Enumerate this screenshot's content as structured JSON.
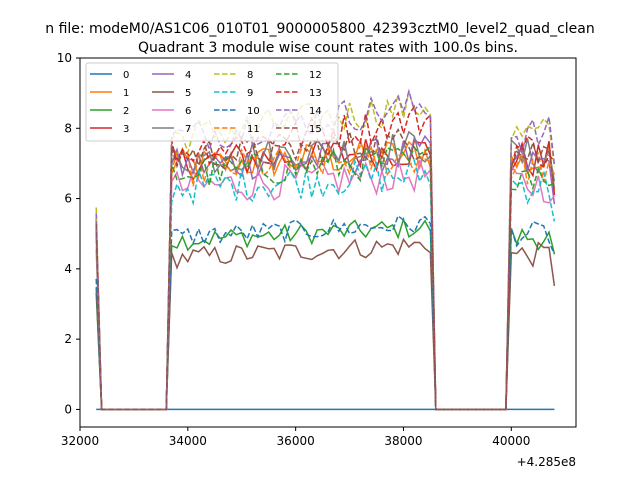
{
  "chart_data": {
    "type": "line",
    "suptitle": "n file: modeM0/AS1C06_010T01_9000005800_42393cztM0_level2_quad_clean",
    "title": "Quadrant 3 module wise count rates with 100.0s bins.",
    "xlabel": "",
    "ylabel": "",
    "offset_text": "+4.285e8",
    "xlim": [
      32000,
      41200
    ],
    "ylim": [
      -0.5,
      10
    ],
    "x_ticks": [
      32000,
      34000,
      36000,
      38000,
      40000
    ],
    "x_tick_labels": [
      "32000",
      "34000",
      "36000",
      "38000",
      "40000"
    ],
    "y_ticks": [
      0,
      2,
      4,
      6,
      8,
      10
    ],
    "y_tick_labels": [
      "0",
      "2",
      "4",
      "6",
      "8",
      "10"
    ],
    "grid": false,
    "legend_position": "top-left",
    "segments": [
      {
        "start": 32300,
        "end": 32400
      },
      {
        "start": 33600,
        "end": 38600
      },
      {
        "start": 39900,
        "end": 40800
      }
    ],
    "series": [
      {
        "name": "0",
        "color": "#1f77b4",
        "style": "solid",
        "level": 0.0
      },
      {
        "name": "1",
        "color": "#ff7f0e",
        "style": "solid",
        "level": 6.9
      },
      {
        "name": "2",
        "color": "#2ca02c",
        "style": "solid",
        "level": 4.8
      },
      {
        "name": "3",
        "color": "#d62728",
        "style": "solid",
        "level": 7.0
      },
      {
        "name": "4",
        "color": "#9467bd",
        "style": "solid",
        "level": 6.9
      },
      {
        "name": "5",
        "color": "#8c564b",
        "style": "solid",
        "level": 4.3
      },
      {
        "name": "6",
        "color": "#e377c2",
        "style": "solid",
        "level": 6.3
      },
      {
        "name": "7",
        "color": "#7f7f7f",
        "style": "solid",
        "level": 7.1
      },
      {
        "name": "8",
        "color": "#bcbd22",
        "style": "dashed",
        "level": 7.7
      },
      {
        "name": "9",
        "color": "#17becf",
        "style": "dashed",
        "level": 6.3
      },
      {
        "name": "10",
        "color": "#1f77b4",
        "style": "dashed",
        "level": 4.9
      },
      {
        "name": "11",
        "color": "#ff7f0e",
        "style": "dashed",
        "level": 6.8
      },
      {
        "name": "12",
        "color": "#2ca02c",
        "style": "dashed",
        "level": 6.7
      },
      {
        "name": "13",
        "color": "#d62728",
        "style": "dashed",
        "level": 7.3
      },
      {
        "name": "14",
        "color": "#9467bd",
        "style": "dashed",
        "level": 7.7
      },
      {
        "name": "15",
        "color": "#8c564b",
        "style": "dashed",
        "level": 7.2
      }
    ]
  }
}
